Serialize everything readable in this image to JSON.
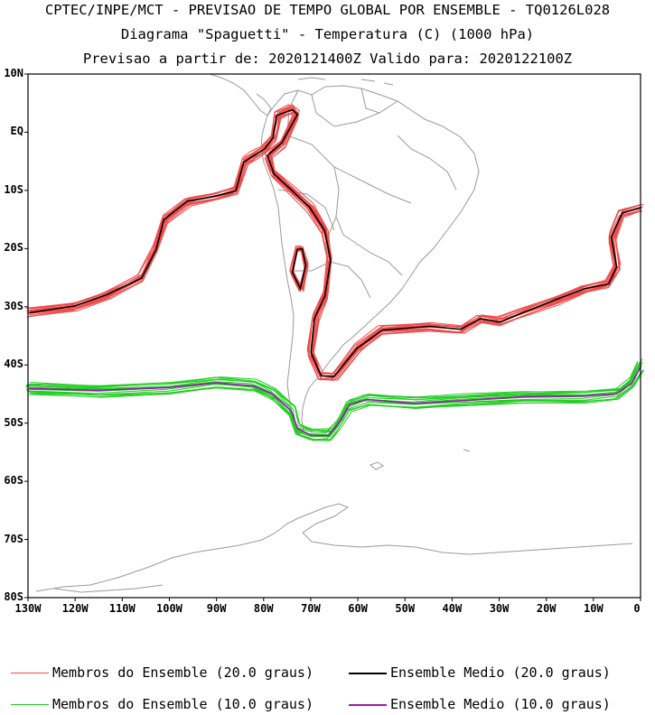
{
  "titles": {
    "line1": "CPTEC/INPE/MCT - PREVISAO DE TEMPO GLOBAL POR ENSEMBLE - TQ0126L028",
    "line2": "Diagrama \"Spaguetti\" - Temperatura (C) (1000 hPa)",
    "line3": "Previsao a partir de: 2020121400Z  Valido para: 2020122100Z"
  },
  "lat_labels": [
    "10N",
    "EQ",
    "10S",
    "20S",
    "30S",
    "40S",
    "50S",
    "60S",
    "70S",
    "80S"
  ],
  "lon_labels": [
    "130W",
    "120W",
    "110W",
    "100W",
    "90W",
    "80W",
    "70W",
    "60W",
    "50W",
    "40W",
    "30W",
    "20W",
    "10W",
    "0"
  ],
  "legend": {
    "members_20": "Membros do Ensemble (20.0 graus)",
    "mean_20": "Ensemble Medio (20.0 graus)",
    "members_10": "Membros do Ensemble (10.0 graus)",
    "mean_10": "Ensemble Medio (10.0 graus)"
  },
  "colors": {
    "members_20": "#f04a4a",
    "mean_20": "#000000",
    "members_10": "#22cc22",
    "mean_10": "#9a1ab0",
    "coast": "#9a9a9a"
  },
  "map_data": {
    "type": "contour-spaghetti",
    "lon_range": [
      -130,
      0
    ],
    "lat_range": [
      -80,
      10
    ],
    "isotherm_20": [
      [
        -130,
        -31
      ],
      [
        -120,
        -30
      ],
      [
        -113,
        -28
      ],
      [
        -106,
        -25
      ],
      [
        -103,
        -20
      ],
      [
        -101,
        -15
      ],
      [
        -96,
        -12
      ],
      [
        -90,
        -11
      ],
      [
        -86,
        -10
      ],
      [
        -84,
        -5
      ],
      [
        -82,
        -4
      ],
      [
        -80,
        -3
      ],
      [
        -78,
        -1
      ],
      [
        -77,
        3
      ],
      [
        -74,
        4
      ],
      [
        -73,
        3
      ],
      [
        -76,
        -2
      ],
      [
        -79,
        -4
      ],
      [
        -78,
        -7
      ],
      [
        -74,
        -10
      ],
      [
        -70,
        -13
      ],
      [
        -67,
        -17
      ],
      [
        -66,
        -22
      ],
      [
        -67,
        -28
      ],
      [
        -69,
        -32
      ],
      [
        -70,
        -38
      ],
      [
        -68,
        -42
      ],
      [
        -65,
        -42
      ],
      [
        -60,
        -37
      ],
      [
        -55,
        -34
      ],
      [
        -45,
        -33.5
      ],
      [
        -38,
        -34
      ],
      [
        -34,
        -32
      ],
      [
        -30,
        -32.5
      ],
      [
        -25,
        -31
      ],
      [
        -18,
        -29
      ],
      [
        -12,
        -27
      ],
      [
        -7,
        -26
      ],
      [
        -5,
        -23
      ],
      [
        -6,
        -18
      ],
      [
        -4,
        -14
      ],
      [
        0,
        -13
      ]
    ],
    "isotherm_20_island": [
      [
        -72,
        -20
      ],
      [
        -71,
        -23
      ],
      [
        -72,
        -27
      ],
      [
        -74,
        -24
      ],
      [
        -73,
        -20
      ]
    ],
    "isotherm_10": [
      [
        -130,
        -44
      ],
      [
        -115,
        -44.5
      ],
      [
        -100,
        -44
      ],
      [
        -90,
        -43
      ],
      [
        -82,
        -43.5
      ],
      [
        -78,
        -45
      ],
      [
        -74,
        -48
      ],
      [
        -73,
        -51
      ],
      [
        -70,
        -52
      ],
      [
        -66,
        -52
      ],
      [
        -64,
        -50
      ],
      [
        -62,
        -47
      ],
      [
        -58,
        -46
      ],
      [
        -48,
        -46.5
      ],
      [
        -38,
        -46
      ],
      [
        -25,
        -45.5
      ],
      [
        -12,
        -45.5
      ],
      [
        -5,
        -45
      ],
      [
        -2,
        -43
      ],
      [
        0,
        -40
      ]
    ]
  }
}
